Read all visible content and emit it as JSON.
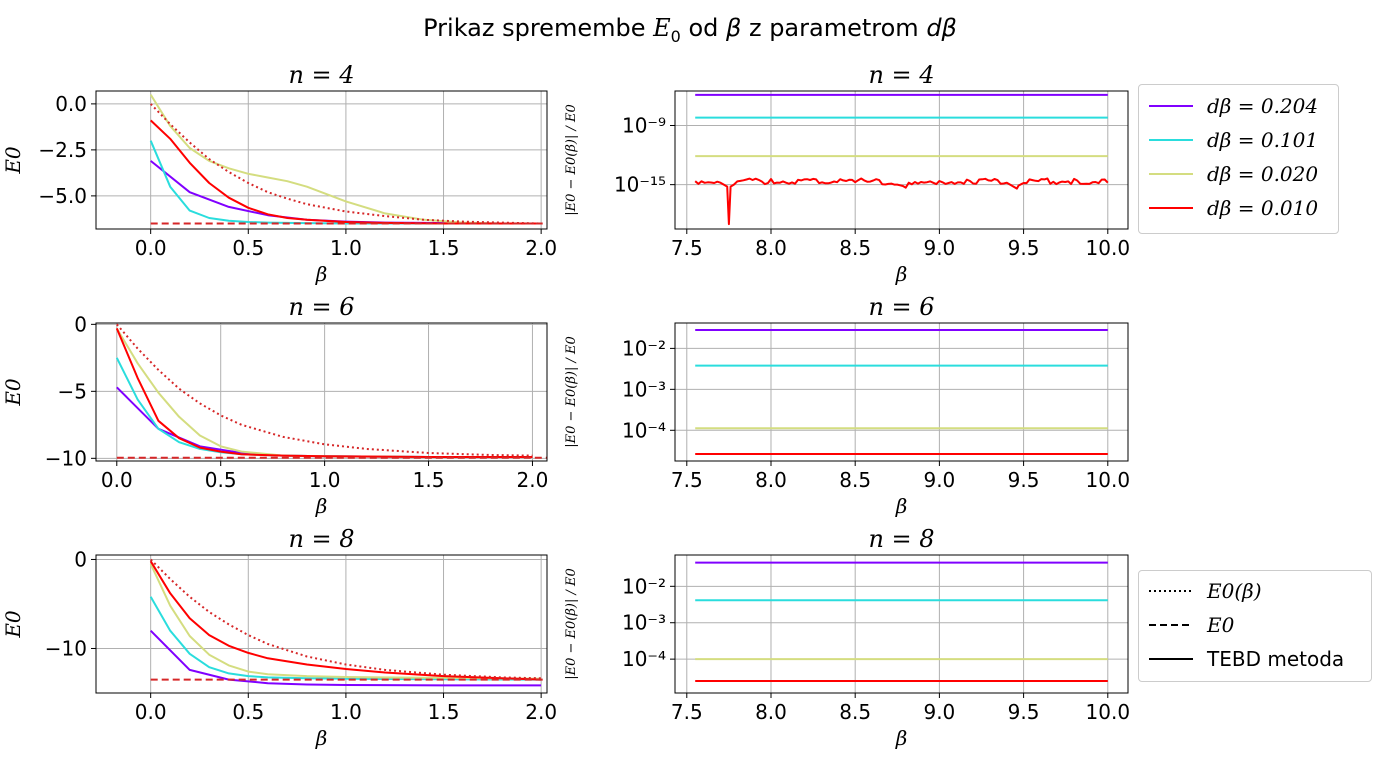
{
  "figure": {
    "title_parts": [
      "Prikaz spremembe ",
      "E",
      "0",
      " od ",
      "β",
      " z parametrom ",
      "dβ"
    ],
    "colors": {
      "c204": "#8000ff",
      "c101": "#2adddd",
      "c020": "#d4dd80",
      "c010": "#ff0000",
      "ref": "#d62728",
      "grid": "#b0b0b0"
    }
  },
  "legend_dbeta": {
    "entries": [
      {
        "label": "dβ = 0.204",
        "color": "#8000ff"
      },
      {
        "label": "dβ = 0.101",
        "color": "#2adddd"
      },
      {
        "label": "dβ = 0.020",
        "color": "#d4dd80"
      },
      {
        "label": "dβ = 0.010",
        "color": "#ff0000"
      }
    ]
  },
  "legend_style": {
    "entries": [
      {
        "label": "E0(β)",
        "style": "dotted"
      },
      {
        "label": "E0",
        "style": "dashed"
      },
      {
        "label": "TEBD metoda",
        "style": "solid"
      }
    ]
  },
  "chart_data": [
    {
      "type": "line",
      "panel": "left-n4",
      "title": "n = 4",
      "xlabel": "β",
      "ylabel": "E0",
      "xlim": [
        -0.28,
        2.03
      ],
      "ylim": [
        -6.8,
        0.7
      ],
      "xticks": [
        0.0,
        0.5,
        1.0,
        1.5,
        2.0
      ],
      "xtick_labels": [
        "0.0",
        "0.5",
        "1.0",
        "1.5",
        "2.0"
      ],
      "yticks": [
        0.0,
        -2.5,
        -5.0
      ],
      "ytick_labels": [
        "0.0",
        "−2.5",
        "−5.0"
      ],
      "series": [
        {
          "name": "dβ = 0.204",
          "color": "#8000ff",
          "x": [
            0,
            0.2,
            0.4,
            0.6,
            0.8,
            1.0,
            1.2,
            1.4,
            1.6,
            1.8,
            2.0
          ],
          "y": [
            -3.1,
            -4.8,
            -5.6,
            -6.05,
            -6.3,
            -6.4,
            -6.45,
            -6.47,
            -6.49,
            -6.5,
            -6.5
          ]
        },
        {
          "name": "dβ = 0.101",
          "color": "#2adddd",
          "x": [
            0,
            0.1,
            0.2,
            0.3,
            0.4,
            0.5,
            0.6,
            0.8,
            1.0,
            1.5,
            2.0
          ],
          "y": [
            -2.0,
            -4.5,
            -5.8,
            -6.2,
            -6.35,
            -6.42,
            -6.45,
            -6.48,
            -6.5,
            -6.5,
            -6.5
          ]
        },
        {
          "name": "dβ = 0.020",
          "color": "#d4dd80",
          "x": [
            0,
            0.1,
            0.2,
            0.3,
            0.4,
            0.5,
            0.6,
            0.7,
            0.8,
            1.0,
            1.2,
            1.4,
            1.6,
            1.8,
            2.0
          ],
          "y": [
            0.5,
            -1.2,
            -2.4,
            -3.1,
            -3.5,
            -3.8,
            -4.0,
            -4.2,
            -4.5,
            -5.3,
            -5.95,
            -6.3,
            -6.45,
            -6.5,
            -6.5
          ]
        },
        {
          "name": "dβ = 0.010",
          "color": "#ff0000",
          "x": [
            0,
            0.1,
            0.2,
            0.3,
            0.4,
            0.5,
            0.6,
            0.7,
            0.8,
            1.0,
            1.2,
            1.5,
            2.0
          ],
          "y": [
            -0.9,
            -1.9,
            -3.2,
            -4.3,
            -5.1,
            -5.65,
            -6.0,
            -6.2,
            -6.3,
            -6.42,
            -6.47,
            -6.5,
            -6.5
          ]
        },
        {
          "name": "E0(β)",
          "color": "#d62728",
          "style": "dotted",
          "x": [
            0,
            0.1,
            0.2,
            0.3,
            0.4,
            0.5,
            0.6,
            0.7,
            0.8,
            1.0,
            1.2,
            1.4,
            1.6,
            1.8,
            2.0
          ],
          "y": [
            0.0,
            -1.1,
            -2.1,
            -3.0,
            -3.7,
            -4.3,
            -4.8,
            -5.15,
            -5.45,
            -5.85,
            -6.1,
            -6.3,
            -6.4,
            -6.45,
            -6.5
          ]
        },
        {
          "name": "E0",
          "color": "#d62728",
          "style": "dashed",
          "x": [
            0,
            2.03
          ],
          "y": [
            -6.5,
            -6.5
          ]
        }
      ]
    },
    {
      "type": "line",
      "panel": "right-n4",
      "title": "n = 4",
      "xlabel": "β",
      "ylabel": "|E0 − E0(β)| / E0",
      "yscale": "log",
      "xlim": [
        7.43,
        10.12
      ],
      "ylim": [
        -19.5,
        -5.5
      ],
      "xticks": [
        7.5,
        8.0,
        8.5,
        9.0,
        9.5,
        10.0
      ],
      "xtick_labels": [
        "7.5",
        "8.0",
        "8.5",
        "9.0",
        "9.5",
        "10.0"
      ],
      "yticks": [
        -9,
        -15
      ],
      "ytick_labels": [
        "10⁻⁹",
        "10⁻¹⁵"
      ],
      "series": [
        {
          "name": "dβ = 0.204",
          "color": "#8000ff",
          "x": [
            7.55,
            10.0
          ],
          "y": [
            -5.9,
            -5.9
          ]
        },
        {
          "name": "dβ = 0.101",
          "color": "#2adddd",
          "x": [
            7.55,
            10.0
          ],
          "y": [
            -8.2,
            -8.2
          ]
        },
        {
          "name": "dβ = 0.020",
          "color": "#d4dd80",
          "x": [
            7.55,
            10.0
          ],
          "y": [
            -12.1,
            -12.1
          ]
        },
        {
          "name": "dβ = 0.010",
          "color": "#ff0000",
          "noisy": true,
          "x": [
            7.55,
            7.7,
            7.74,
            7.75,
            7.76,
            7.8,
            8.0,
            8.5,
            8.75,
            8.8,
            9.0,
            9.2,
            9.4,
            9.46,
            9.47,
            9.5,
            9.8,
            10.0
          ],
          "y": [
            -14.8,
            -14.8,
            -15.2,
            -19.0,
            -15.2,
            -14.8,
            -14.8,
            -14.8,
            -15.0,
            -15.2,
            -14.8,
            -14.8,
            -14.8,
            -15.4,
            -15.1,
            -14.8,
            -14.8,
            -14.8
          ]
        }
      ]
    },
    {
      "type": "line",
      "panel": "left-n6",
      "title": "n = 6",
      "xlabel": "β",
      "ylabel": "E0",
      "xlim": [
        -0.1,
        2.07
      ],
      "ylim": [
        -10.2,
        0.1
      ],
      "xticks": [
        0.0,
        0.5,
        1.0,
        1.5,
        2.0
      ],
      "xtick_labels": [
        "0.0",
        "0.5",
        "1.0",
        "1.5",
        "2.0"
      ],
      "yticks": [
        0,
        -5,
        -10
      ],
      "ytick_labels": [
        "0",
        "−5",
        "−10"
      ],
      "series": [
        {
          "name": "dβ = 0.204",
          "color": "#8000ff",
          "x": [
            0,
            0.2,
            0.4,
            0.6,
            0.8,
            1.0,
            1.5,
            2.0
          ],
          "y": [
            -4.7,
            -7.8,
            -9.1,
            -9.6,
            -9.8,
            -9.85,
            -9.9,
            -9.9
          ]
        },
        {
          "name": "dβ = 0.101",
          "color": "#2adddd",
          "x": [
            0,
            0.1,
            0.2,
            0.3,
            0.4,
            0.5,
            0.6,
            0.8,
            1.0,
            1.5,
            2.0
          ],
          "y": [
            -2.5,
            -5.6,
            -7.8,
            -8.8,
            -9.3,
            -9.55,
            -9.7,
            -9.8,
            -9.85,
            -9.9,
            -9.9
          ]
        },
        {
          "name": "dβ = 0.020",
          "color": "#d4dd80",
          "x": [
            0,
            0.1,
            0.2,
            0.3,
            0.4,
            0.5,
            0.6,
            0.8,
            1.0,
            1.5,
            2.0
          ],
          "y": [
            -0.3,
            -2.9,
            -5.1,
            -6.9,
            -8.3,
            -9.1,
            -9.5,
            -9.8,
            -9.85,
            -9.9,
            -9.9
          ]
        },
        {
          "name": "dβ = 0.010",
          "color": "#ff0000",
          "x": [
            0,
            0.1,
            0.2,
            0.3,
            0.4,
            0.5,
            0.6,
            0.8,
            1.0,
            1.5,
            2.0
          ],
          "y": [
            -0.3,
            -4.0,
            -7.2,
            -8.5,
            -9.2,
            -9.5,
            -9.7,
            -9.8,
            -9.85,
            -9.9,
            -9.9
          ]
        },
        {
          "name": "E0(β)",
          "color": "#d62728",
          "style": "dotted",
          "x": [
            0,
            0.1,
            0.2,
            0.3,
            0.4,
            0.5,
            0.6,
            0.8,
            1.0,
            1.2,
            1.5,
            1.8,
            2.0
          ],
          "y": [
            0.0,
            -1.8,
            -3.4,
            -4.8,
            -5.9,
            -6.8,
            -7.5,
            -8.4,
            -8.95,
            -9.3,
            -9.6,
            -9.75,
            -9.8
          ]
        },
        {
          "name": "E0",
          "color": "#d62728",
          "style": "dashed",
          "x": [
            0,
            2.07
          ],
          "y": [
            -9.95,
            -9.95
          ]
        }
      ]
    },
    {
      "type": "line",
      "panel": "right-n6",
      "title": "n = 6",
      "xlabel": "β",
      "ylabel": "|E0 − E0(β)| / E0",
      "yscale": "log",
      "xlim": [
        7.43,
        10.12
      ],
      "ylim": [
        -4.75,
        -1.38
      ],
      "xticks": [
        7.5,
        8.0,
        8.5,
        9.0,
        9.5,
        10.0
      ],
      "xtick_labels": [
        "7.5",
        "8.0",
        "8.5",
        "9.0",
        "9.5",
        "10.0"
      ],
      "yticks": [
        -2,
        -3,
        -4
      ],
      "ytick_labels": [
        "10⁻²",
        "10⁻³",
        "10⁻⁴"
      ],
      "series": [
        {
          "name": "dβ = 0.204",
          "color": "#8000ff",
          "x": [
            7.55,
            10.0
          ],
          "y": [
            -1.55,
            -1.55
          ]
        },
        {
          "name": "dβ = 0.101",
          "color": "#2adddd",
          "x": [
            7.55,
            10.0
          ],
          "y": [
            -2.42,
            -2.42
          ]
        },
        {
          "name": "dβ = 0.020",
          "color": "#d4dd80",
          "x": [
            7.55,
            10.0
          ],
          "y": [
            -3.95,
            -3.95
          ]
        },
        {
          "name": "dβ = 0.010",
          "color": "#ff0000",
          "x": [
            7.55,
            10.0
          ],
          "y": [
            -4.58,
            -4.58
          ]
        }
      ]
    },
    {
      "type": "line",
      "panel": "left-n8",
      "title": "n = 8",
      "xlabel": "β",
      "ylabel": "E0",
      "xlim": [
        -0.28,
        2.03
      ],
      "ylim": [
        -15.0,
        0.5
      ],
      "xticks": [
        0.0,
        0.5,
        1.0,
        1.5,
        2.0
      ],
      "xtick_labels": [
        "0.0",
        "0.5",
        "1.0",
        "1.5",
        "2.0"
      ],
      "yticks": [
        0,
        -10
      ],
      "ytick_labels": [
        "0",
        "−10"
      ],
      "series": [
        {
          "name": "dβ = 0.204",
          "color": "#8000ff",
          "x": [
            0,
            0.2,
            0.4,
            0.6,
            0.8,
            1.0,
            1.5,
            2.0
          ],
          "y": [
            -8.0,
            -12.4,
            -13.5,
            -13.9,
            -14.05,
            -14.1,
            -14.15,
            -14.15
          ]
        },
        {
          "name": "dβ = 0.101",
          "color": "#2adddd",
          "x": [
            0,
            0.1,
            0.2,
            0.3,
            0.4,
            0.5,
            0.6,
            0.8,
            1.0,
            1.5,
            2.0
          ],
          "y": [
            -4.2,
            -8.0,
            -10.6,
            -12.1,
            -12.8,
            -13.1,
            -13.25,
            -13.35,
            -13.4,
            -13.45,
            -13.5
          ]
        },
        {
          "name": "dβ = 0.020",
          "color": "#d4dd80",
          "x": [
            0,
            0.1,
            0.2,
            0.3,
            0.4,
            0.5,
            0.6,
            0.8,
            1.0,
            1.5,
            2.0
          ],
          "y": [
            -0.5,
            -5.2,
            -8.6,
            -10.7,
            -11.9,
            -12.6,
            -12.9,
            -13.1,
            -13.2,
            -13.3,
            -13.4
          ]
        },
        {
          "name": "dβ = 0.010",
          "color": "#ff0000",
          "x": [
            0,
            0.1,
            0.2,
            0.3,
            0.4,
            0.5,
            0.6,
            0.8,
            1.0,
            1.2,
            1.5,
            2.0
          ],
          "y": [
            -0.2,
            -3.8,
            -6.6,
            -8.5,
            -9.7,
            -10.5,
            -11.1,
            -11.8,
            -12.3,
            -12.7,
            -13.1,
            -13.5
          ]
        },
        {
          "name": "E0(β)",
          "color": "#d62728",
          "style": "dotted",
          "x": [
            0,
            0.1,
            0.2,
            0.3,
            0.4,
            0.5,
            0.6,
            0.8,
            1.0,
            1.2,
            1.5,
            1.8,
            2.0
          ],
          "y": [
            0.0,
            -2.2,
            -4.2,
            -5.9,
            -7.3,
            -8.5,
            -9.5,
            -10.9,
            -11.8,
            -12.4,
            -12.95,
            -13.25,
            -13.35
          ]
        },
        {
          "name": "E0",
          "color": "#d62728",
          "style": "dashed",
          "x": [
            0,
            2.03
          ],
          "y": [
            -13.5,
            -13.5
          ]
        }
      ]
    },
    {
      "type": "line",
      "panel": "right-n8",
      "title": "n = 8",
      "xlabel": "β",
      "ylabel": "|E0 − E0(β)| / E0",
      "yscale": "log",
      "xlim": [
        7.43,
        10.12
      ],
      "ylim": [
        -4.93,
        -1.14
      ],
      "xticks": [
        7.5,
        8.0,
        8.5,
        9.0,
        9.5,
        10.0
      ],
      "xtick_labels": [
        "7.5",
        "8.0",
        "8.5",
        "9.0",
        "9.5",
        "10.0"
      ],
      "yticks": [
        -2,
        -3,
        -4
      ],
      "ytick_labels": [
        "10⁻²",
        "10⁻³",
        "10⁻⁴"
      ],
      "series": [
        {
          "name": "dβ = 0.204",
          "color": "#8000ff",
          "x": [
            7.55,
            10.0
          ],
          "y": [
            -1.35,
            -1.35
          ]
        },
        {
          "name": "dβ = 0.101",
          "color": "#2adddd",
          "x": [
            7.55,
            10.0
          ],
          "y": [
            -2.38,
            -2.38
          ]
        },
        {
          "name": "dβ = 0.020",
          "color": "#d4dd80",
          "x": [
            7.55,
            10.0
          ],
          "y": [
            -4.0,
            -4.0
          ]
        },
        {
          "name": "dβ = 0.010",
          "color": "#ff0000",
          "x": [
            7.55,
            10.0
          ],
          "y": [
            -4.6,
            -4.6
          ]
        }
      ]
    }
  ]
}
